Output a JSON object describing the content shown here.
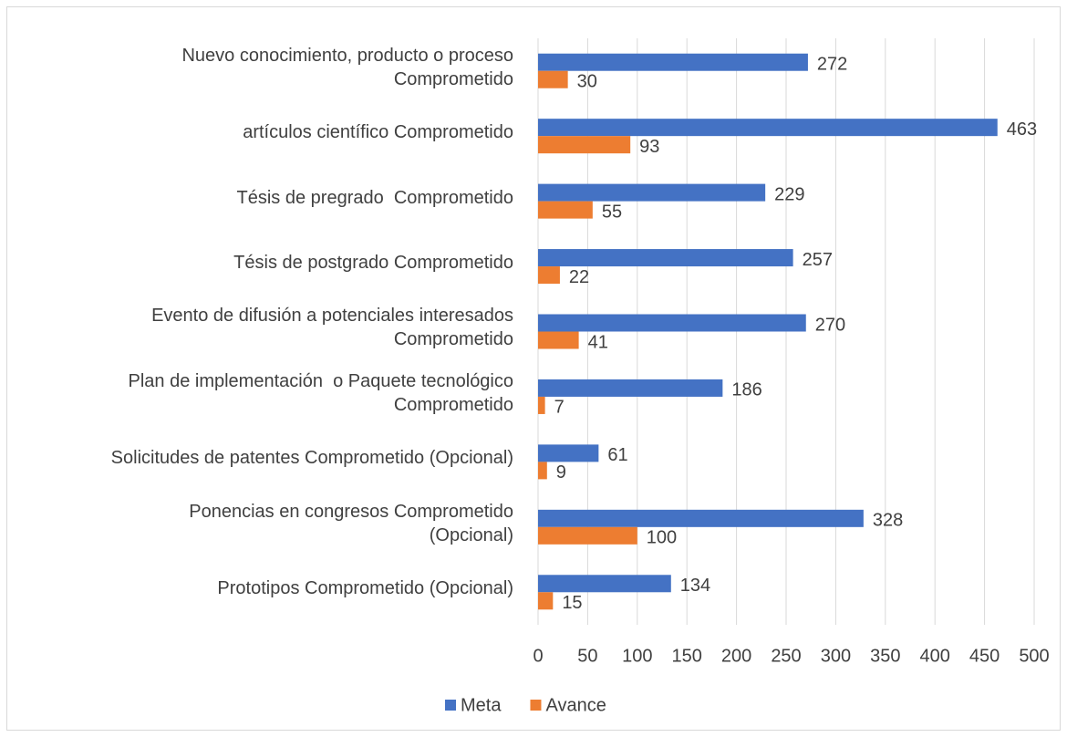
{
  "chart_data": {
    "type": "hbar",
    "categories": [
      "Nuevo conocimiento, producto o proceso\nComprometido",
      "artículos científico Comprometido",
      "Tésis de pregrado  Comprometido",
      "Tésis de postgrado Comprometido",
      "Evento de difusión a potenciales interesados\nComprometido",
      "Plan de implementación  o Paquete tecnológico\nComprometido",
      "Solicitudes de patentes Comprometido (Opcional)",
      "Ponencias en congresos Comprometido\n(Opcional)",
      "Prototipos Comprometido (Opcional)"
    ],
    "series": [
      {
        "name": "Meta",
        "color": "#4472c4",
        "values": [
          272,
          463,
          229,
          257,
          270,
          186,
          61,
          328,
          134
        ]
      },
      {
        "name": "Avance",
        "color": "#ed7d31",
        "values": [
          30,
          93,
          55,
          22,
          41,
          7,
          9,
          100,
          15
        ]
      }
    ],
    "xlim": [
      0,
      500
    ],
    "xticks": [
      0,
      50,
      100,
      150,
      200,
      250,
      300,
      350,
      400,
      450,
      500
    ],
    "grid": true,
    "legend": "bottom"
  }
}
